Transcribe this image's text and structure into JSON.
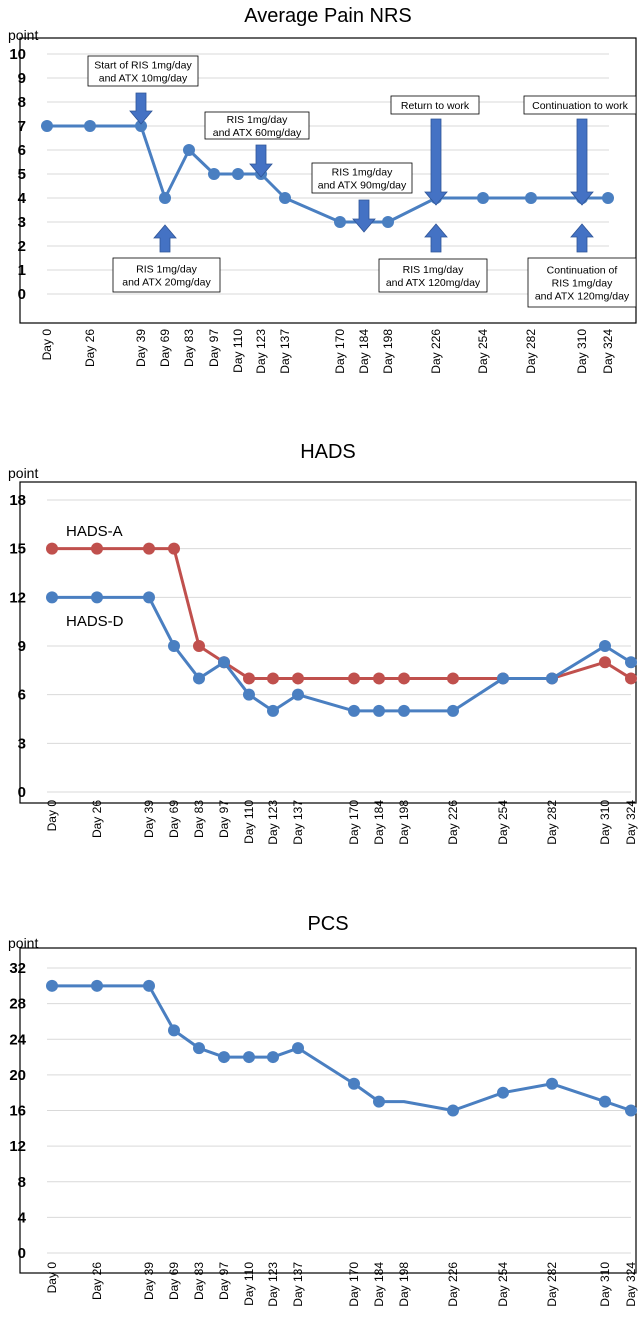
{
  "chart_data": [
    {
      "type": "line",
      "title": "Average Pain NRS",
      "ylabel": "point",
      "xlabel": "",
      "ylim": [
        0,
        10
      ],
      "yticks": [
        0,
        1,
        2,
        3,
        4,
        5,
        6,
        7,
        8,
        9,
        10
      ],
      "grid": true,
      "x": [
        0,
        26,
        39,
        69,
        83,
        97,
        110,
        123,
        137,
        170,
        184,
        198,
        226,
        254,
        282,
        310,
        324
      ],
      "categories": [
        "Day 0",
        "Day 26",
        "Day 39",
        "Day 69",
        "Day 83",
        "Day 97",
        "Day 110",
        "Day 123",
        "Day 137",
        "Day 170",
        "Day 184",
        "Day 198",
        "Day 226",
        "Day 254",
        "Day 282",
        "Day 310",
        "Day 324"
      ],
      "series": [
        {
          "color": "#4a7fc1",
          "values": [
            7,
            7,
            7,
            4,
            6,
            5,
            5,
            5,
            4,
            3,
            3,
            3,
            4,
            4,
            4,
            4,
            4
          ]
        }
      ],
      "annotations": [
        {
          "at": "Day 39",
          "direction": "down",
          "lines": [
            "Start of RIS 1mg/day",
            "and ATX 10mg/day"
          ]
        },
        {
          "at": "Day 69",
          "direction": "up",
          "lines": [
            "RIS 1mg/day",
            "and ATX 20mg/day"
          ]
        },
        {
          "at": "Day 123",
          "direction": "down",
          "lines": [
            "RIS 1mg/day",
            "and ATX 60mg/day"
          ]
        },
        {
          "at": "Day 184",
          "direction": "down",
          "lines": [
            "RIS 1mg/day",
            "and ATX 90mg/day"
          ]
        },
        {
          "at": "Day 226",
          "direction": "down",
          "lines": [
            "Return to work"
          ]
        },
        {
          "at": "Day 226",
          "direction": "up",
          "lines": [
            "RIS 1mg/day",
            "and ATX 120mg/day"
          ]
        },
        {
          "at": "Day 310",
          "direction": "down",
          "lines": [
            "Continuation to work"
          ]
        },
        {
          "at": "Day 310",
          "direction": "up",
          "lines": [
            "Continuation of",
            "RIS 1mg/day",
            "and ATX 120mg/day"
          ]
        }
      ]
    },
    {
      "type": "line",
      "title": "HADS",
      "ylabel": "point",
      "xlabel": "",
      "ylim": [
        0,
        18
      ],
      "yticks": [
        0,
        3,
        6,
        9,
        12,
        15,
        18
      ],
      "grid": true,
      "x": [
        0,
        26,
        39,
        69,
        83,
        97,
        110,
        123,
        137,
        170,
        184,
        198,
        226,
        254,
        282,
        310,
        324
      ],
      "categories": [
        "Day 0",
        "Day 26",
        "Day 39",
        "Day 69",
        "Day 83",
        "Day 97",
        "Day 110",
        "Day 123",
        "Day 137",
        "Day 170",
        "Day 184",
        "Day 198",
        "Day 226",
        "Day 254",
        "Day 282",
        "Day 310",
        "Day 324"
      ],
      "series": [
        {
          "name": "HADS-D",
          "color": "#4a7fc1",
          "values": [
            12,
            12,
            12,
            9,
            7,
            8,
            6,
            5,
            6,
            5,
            5,
            5,
            5,
            7,
            7,
            9,
            8
          ]
        },
        {
          "name": "HADS-A",
          "color": "#c0504d",
          "values": [
            15,
            15,
            15,
            15,
            9,
            8,
            7,
            7,
            7,
            7,
            7,
            7,
            7,
            7,
            7,
            8,
            7
          ]
        }
      ],
      "legend_placement": "inline-left"
    },
    {
      "type": "line",
      "title": "PCS",
      "ylabel": "point",
      "xlabel": "",
      "ylim": [
        0,
        32
      ],
      "yticks": [
        0,
        4,
        8,
        12,
        16,
        20,
        24,
        28,
        32
      ],
      "grid": true,
      "x": [
        0,
        26,
        39,
        69,
        83,
        97,
        110,
        123,
        137,
        170,
        184,
        198,
        226,
        254,
        282,
        310,
        324
      ],
      "categories": [
        "Day 0",
        "Day 26",
        "Day 39",
        "Day 69",
        "Day 83",
        "Day 97",
        "Day 110",
        "Day 123",
        "Day 137",
        "Day 170",
        "Day 184",
        "Day 198",
        "Day 226",
        "Day 254",
        "Day 282",
        "Day 310",
        "Day 324"
      ],
      "series": [
        {
          "color": "#4a7fc1",
          "values": [
            30,
            30,
            30,
            25,
            23,
            22,
            22,
            22,
            23,
            19,
            17,
            17,
            16,
            18,
            19,
            17,
            16
          ]
        }
      ],
      "marker_hidden_at": [
        "Day 198"
      ]
    }
  ]
}
